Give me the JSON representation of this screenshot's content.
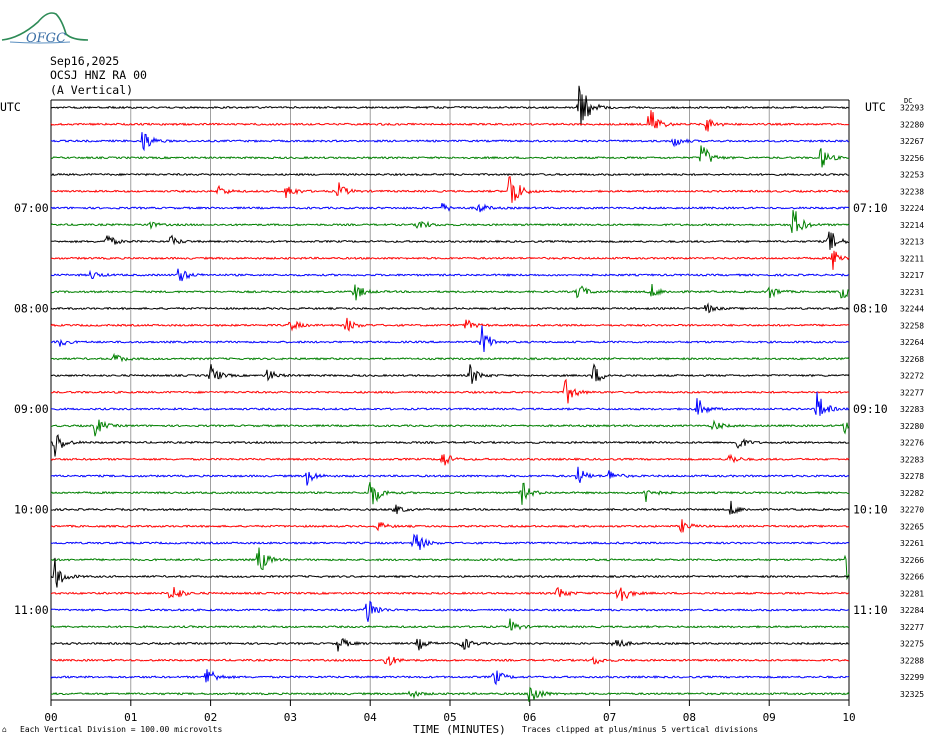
{
  "logo": {
    "text": "OFGC"
  },
  "header": {
    "date": "Sep16,2025",
    "station": "OCSJ HNZ RA 00",
    "component": "(A Vertical)"
  },
  "chart_data": {
    "type": "line",
    "title": "",
    "tz_left": "UTC",
    "tz_right": "UTC",
    "dc_label": "DC",
    "xlabel": "TIME (MINUTES)",
    "x_ticks": [
      "00",
      "01",
      "02",
      "03",
      "04",
      "05",
      "06",
      "07",
      "08",
      "09",
      "10"
    ],
    "xlim": [
      0,
      10
    ],
    "left_hour_labels": [
      {
        "row": 6,
        "label": "07:00"
      },
      {
        "row": 12,
        "label": "08:00"
      },
      {
        "row": 18,
        "label": "09:00"
      },
      {
        "row": 24,
        "label": "10:00"
      },
      {
        "row": 30,
        "label": "11:00"
      }
    ],
    "right_hour_labels": [
      {
        "row": 6,
        "label": "07:10"
      },
      {
        "row": 12,
        "label": "08:10"
      },
      {
        "row": 18,
        "label": "09:10"
      },
      {
        "row": 24,
        "label": "10:10"
      },
      {
        "row": 30,
        "label": "11:10"
      }
    ],
    "dc_offsets": [
      32293,
      32280,
      32267,
      32256,
      32253,
      32238,
      32224,
      32214,
      32213,
      32211,
      32217,
      32231,
      32244,
      32258,
      32264,
      32268,
      32272,
      32277,
      32283,
      32280,
      32276,
      32283,
      32278,
      32282,
      32270,
      32265,
      32261,
      32266,
      32266,
      32281,
      32284,
      32277,
      32275,
      32288,
      32299,
      32325
    ],
    "trace_colors": [
      "#000000",
      "#ff0000",
      "#0000ff",
      "#008000"
    ],
    "events": [
      {
        "row": 0,
        "t": 6.62,
        "a": 40
      },
      {
        "row": 1,
        "t": 7.5,
        "a": 22
      },
      {
        "row": 1,
        "t": 8.2,
        "a": 10
      },
      {
        "row": 2,
        "t": 1.15,
        "a": 14
      },
      {
        "row": 2,
        "t": 7.8,
        "a": 7
      },
      {
        "row": 3,
        "t": 8.15,
        "a": 18
      },
      {
        "row": 3,
        "t": 9.65,
        "a": 12
      },
      {
        "row": 5,
        "t": 5.75,
        "a": 28
      },
      {
        "row": 5,
        "t": 2.95,
        "a": 9
      },
      {
        "row": 5,
        "t": 3.6,
        "a": 9
      },
      {
        "row": 5,
        "t": 2.1,
        "a": 6
      },
      {
        "row": 6,
        "t": 5.35,
        "a": 6
      },
      {
        "row": 6,
        "t": 4.9,
        "a": 5
      },
      {
        "row": 7,
        "t": 9.3,
        "a": 20
      },
      {
        "row": 7,
        "t": 4.6,
        "a": 7
      },
      {
        "row": 7,
        "t": 1.2,
        "a": 5
      },
      {
        "row": 8,
        "t": 9.75,
        "a": 14
      },
      {
        "row": 8,
        "t": 0.7,
        "a": 8
      },
      {
        "row": 8,
        "t": 1.5,
        "a": 6
      },
      {
        "row": 9,
        "t": 9.8,
        "a": 12
      },
      {
        "row": 10,
        "t": 1.6,
        "a": 10
      },
      {
        "row": 10,
        "t": 0.5,
        "a": 5
      },
      {
        "row": 11,
        "t": 3.8,
        "a": 11
      },
      {
        "row": 11,
        "t": 6.6,
        "a": 10
      },
      {
        "row": 11,
        "t": 7.5,
        "a": 10
      },
      {
        "row": 11,
        "t": 9.0,
        "a": 8
      },
      {
        "row": 11,
        "t": 9.9,
        "a": 9
      },
      {
        "row": 12,
        "t": 8.2,
        "a": 6
      },
      {
        "row": 13,
        "t": 3.0,
        "a": 7
      },
      {
        "row": 13,
        "t": 3.7,
        "a": 8
      },
      {
        "row": 13,
        "t": 5.2,
        "a": 6
      },
      {
        "row": 14,
        "t": 5.4,
        "a": 16
      },
      {
        "row": 14,
        "t": 0.1,
        "a": 5
      },
      {
        "row": 15,
        "t": 0.8,
        "a": 6
      },
      {
        "row": 16,
        "t": 2.0,
        "a": 12
      },
      {
        "row": 16,
        "t": 2.7,
        "a": 8
      },
      {
        "row": 16,
        "t": 5.25,
        "a": 12
      },
      {
        "row": 16,
        "t": 6.8,
        "a": 12
      },
      {
        "row": 17,
        "t": 6.45,
        "a": 15
      },
      {
        "row": 18,
        "t": 8.1,
        "a": 12
      },
      {
        "row": 18,
        "t": 9.6,
        "a": 18
      },
      {
        "row": 19,
        "t": 0.55,
        "a": 11
      },
      {
        "row": 19,
        "t": 9.95,
        "a": 14
      },
      {
        "row": 19,
        "t": 8.3,
        "a": 6
      },
      {
        "row": 20,
        "t": 0.05,
        "a": 16
      },
      {
        "row": 20,
        "t": 8.6,
        "a": 8
      },
      {
        "row": 21,
        "t": 4.9,
        "a": 10
      },
      {
        "row": 21,
        "t": 8.5,
        "a": 6
      },
      {
        "row": 22,
        "t": 3.2,
        "a": 10
      },
      {
        "row": 22,
        "t": 6.6,
        "a": 10
      },
      {
        "row": 22,
        "t": 7.0,
        "a": 7
      },
      {
        "row": 23,
        "t": 4.0,
        "a": 20
      },
      {
        "row": 23,
        "t": 5.9,
        "a": 12
      },
      {
        "row": 23,
        "t": 7.45,
        "a": 10
      },
      {
        "row": 24,
        "t": 8.5,
        "a": 10
      },
      {
        "row": 24,
        "t": 4.3,
        "a": 6
      },
      {
        "row": 25,
        "t": 7.9,
        "a": 7
      },
      {
        "row": 25,
        "t": 4.1,
        "a": 5
      },
      {
        "row": 26,
        "t": 4.55,
        "a": 16
      },
      {
        "row": 27,
        "t": 2.6,
        "a": 18
      },
      {
        "row": 27,
        "t": 9.97,
        "a": 20
      },
      {
        "row": 28,
        "t": 0.05,
        "a": 18
      },
      {
        "row": 29,
        "t": 1.5,
        "a": 14
      },
      {
        "row": 29,
        "t": 7.1,
        "a": 18
      },
      {
        "row": 29,
        "t": 6.35,
        "a": 8
      },
      {
        "row": 30,
        "t": 3.95,
        "a": 20
      },
      {
        "row": 31,
        "t": 5.75,
        "a": 8
      },
      {
        "row": 32,
        "t": 3.6,
        "a": 9
      },
      {
        "row": 32,
        "t": 4.6,
        "a": 7
      },
      {
        "row": 32,
        "t": 5.15,
        "a": 9
      },
      {
        "row": 32,
        "t": 7.05,
        "a": 10
      },
      {
        "row": 33,
        "t": 4.2,
        "a": 9
      },
      {
        "row": 33,
        "t": 6.8,
        "a": 5
      },
      {
        "row": 34,
        "t": 1.95,
        "a": 14
      },
      {
        "row": 34,
        "t": 5.55,
        "a": 10
      },
      {
        "row": 35,
        "t": 6.0,
        "a": 16
      },
      {
        "row": 35,
        "t": 4.5,
        "a": 5
      }
    ]
  },
  "footer": {
    "scale_note": "Each Vertical Division =  100.00 microvolts",
    "clip_note": "Traces clipped at plus/minus 5 vertical divisions",
    "corner_mark": "⌂"
  }
}
